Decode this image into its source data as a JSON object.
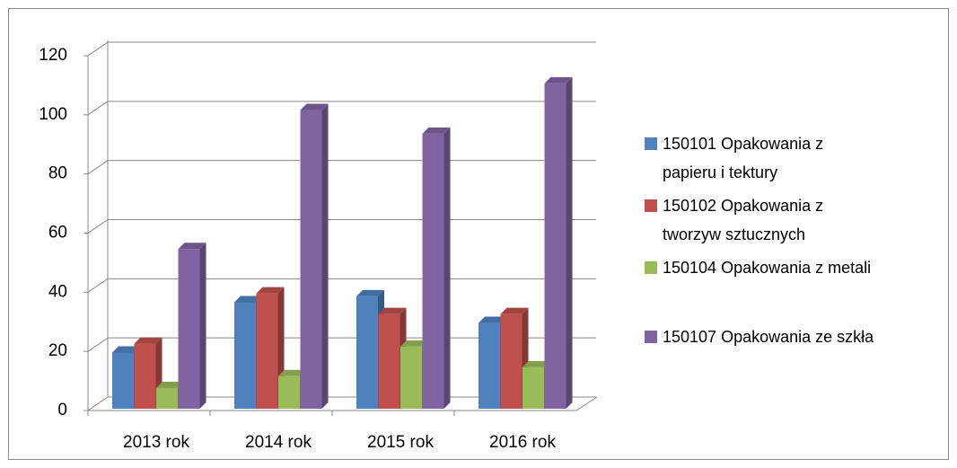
{
  "chart_data": {
    "type": "bar3d",
    "categories": [
      "2013 rok",
      "2014 rok",
      "2015 rok",
      "2016 rok"
    ],
    "series": [
      {
        "name": "150101 Opakowania z papieru i tektury",
        "color": "#4f81bd",
        "values": [
          19,
          36,
          38,
          29
        ]
      },
      {
        "name": "150102 Opakowania z tworzyw sztucznych",
        "color": "#c0504d",
        "values": [
          22,
          39,
          32,
          32
        ]
      },
      {
        "name": "150104 Opakowania z metali",
        "color": "#9bbb59",
        "values": [
          7,
          11,
          21,
          14
        ]
      },
      {
        "name": "150107 Opakowania ze szkła",
        "color": "#8064a2",
        "values": [
          54,
          101,
          93,
          110
        ]
      }
    ],
    "ylim": [
      0,
      120
    ],
    "yticks": [
      0,
      20,
      40,
      60,
      80,
      100,
      120
    ],
    "grid": true,
    "legend": "right"
  }
}
